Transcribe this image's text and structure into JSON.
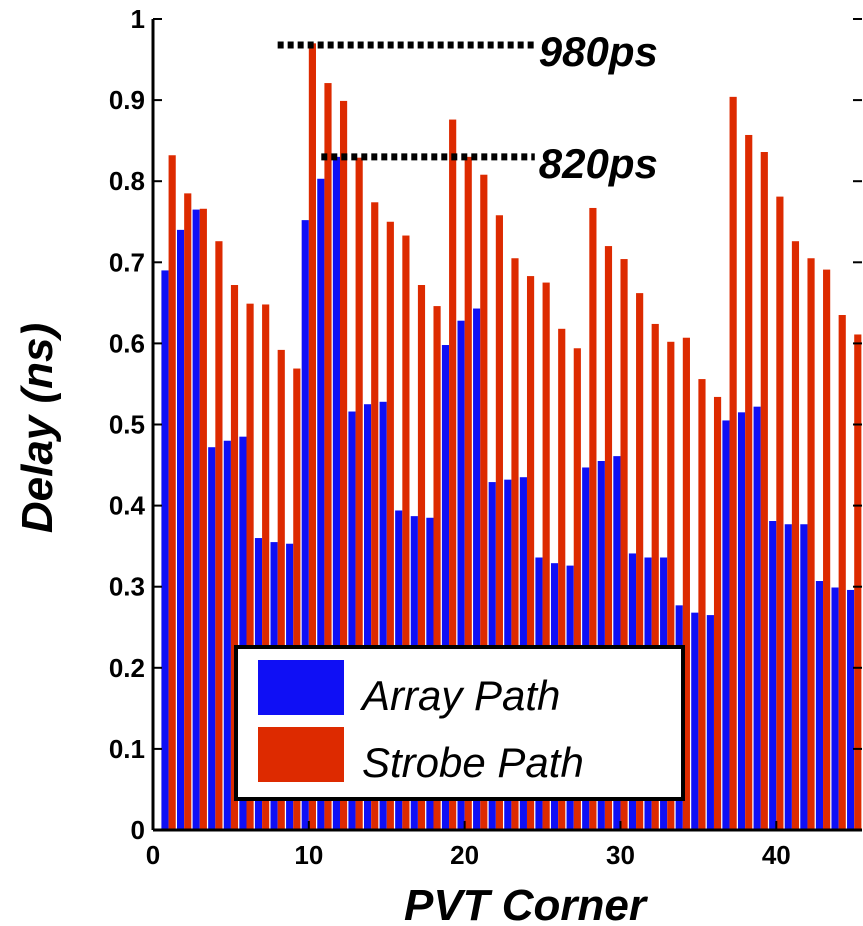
{
  "colors": {
    "array": "#0f0ff5",
    "strobe": "#dd2a00",
    "axis": "#000000",
    "background": "#ffffff"
  },
  "chart_data": {
    "type": "bar",
    "xlabel": "PVT Corner",
    "ylabel": "Delay (ns)",
    "xlim": [
      0,
      45.5
    ],
    "ylim": [
      0,
      1
    ],
    "xticks": [
      0,
      10,
      20,
      30,
      40
    ],
    "yticks": [
      0,
      0.1,
      0.2,
      0.3,
      0.4,
      0.5,
      0.6,
      0.7,
      0.8,
      0.9,
      1
    ],
    "ytick_labels": [
      "0",
      "0.1",
      "0.2",
      "0.3",
      "0.4",
      "0.5",
      "0.6",
      "0.7",
      "0.8",
      "0.9",
      "1"
    ],
    "legend_position": "bottom-center",
    "grid": false,
    "x": [
      1,
      2,
      3,
      4,
      5,
      6,
      7,
      8,
      9,
      10,
      11,
      12,
      13,
      14,
      15,
      16,
      17,
      18,
      19,
      20,
      21,
      22,
      23,
      24,
      25,
      26,
      27,
      28,
      29,
      30,
      31,
      32,
      33,
      34,
      35,
      36,
      37,
      38,
      39,
      40,
      41,
      42,
      43,
      44,
      45
    ],
    "series": [
      {
        "name": "Array Path",
        "color": "#0f0ff5",
        "values": [
          0.69,
          0.74,
          0.765,
          0.472,
          0.48,
          0.485,
          0.36,
          0.355,
          0.353,
          0.752,
          0.803,
          0.83,
          0.516,
          0.525,
          0.528,
          0.394,
          0.387,
          0.385,
          0.598,
          0.628,
          0.643,
          0.429,
          0.432,
          0.435,
          0.336,
          0.329,
          0.326,
          0.447,
          0.455,
          0.461,
          0.341,
          0.336,
          0.336,
          0.277,
          0.268,
          0.265,
          0.505,
          0.515,
          0.522,
          0.381,
          0.377,
          0.377,
          0.307,
          0.299,
          0.296
        ]
      },
      {
        "name": "Strobe Path",
        "color": "#dd2a00",
        "values": [
          0.832,
          0.785,
          0.766,
          0.726,
          0.672,
          0.649,
          0.648,
          0.592,
          0.569,
          0.97,
          0.921,
          0.899,
          0.829,
          0.774,
          0.75,
          0.733,
          0.672,
          0.646,
          0.876,
          0.83,
          0.808,
          0.758,
          0.705,
          0.683,
          0.675,
          0.618,
          0.594,
          0.767,
          0.72,
          0.704,
          0.662,
          0.624,
          0.602,
          0.607,
          0.556,
          0.534,
          0.904,
          0.857,
          0.836,
          0.781,
          0.726,
          0.705,
          0.691,
          0.635,
          0.611
        ]
      }
    ],
    "annotations": [
      {
        "label": "980ps",
        "value": 0.968,
        "x_start": 8,
        "x_end": 24.5
      },
      {
        "label": "820ps",
        "value": 0.83,
        "x_start": 10.8,
        "x_end": 24.5
      }
    ]
  }
}
